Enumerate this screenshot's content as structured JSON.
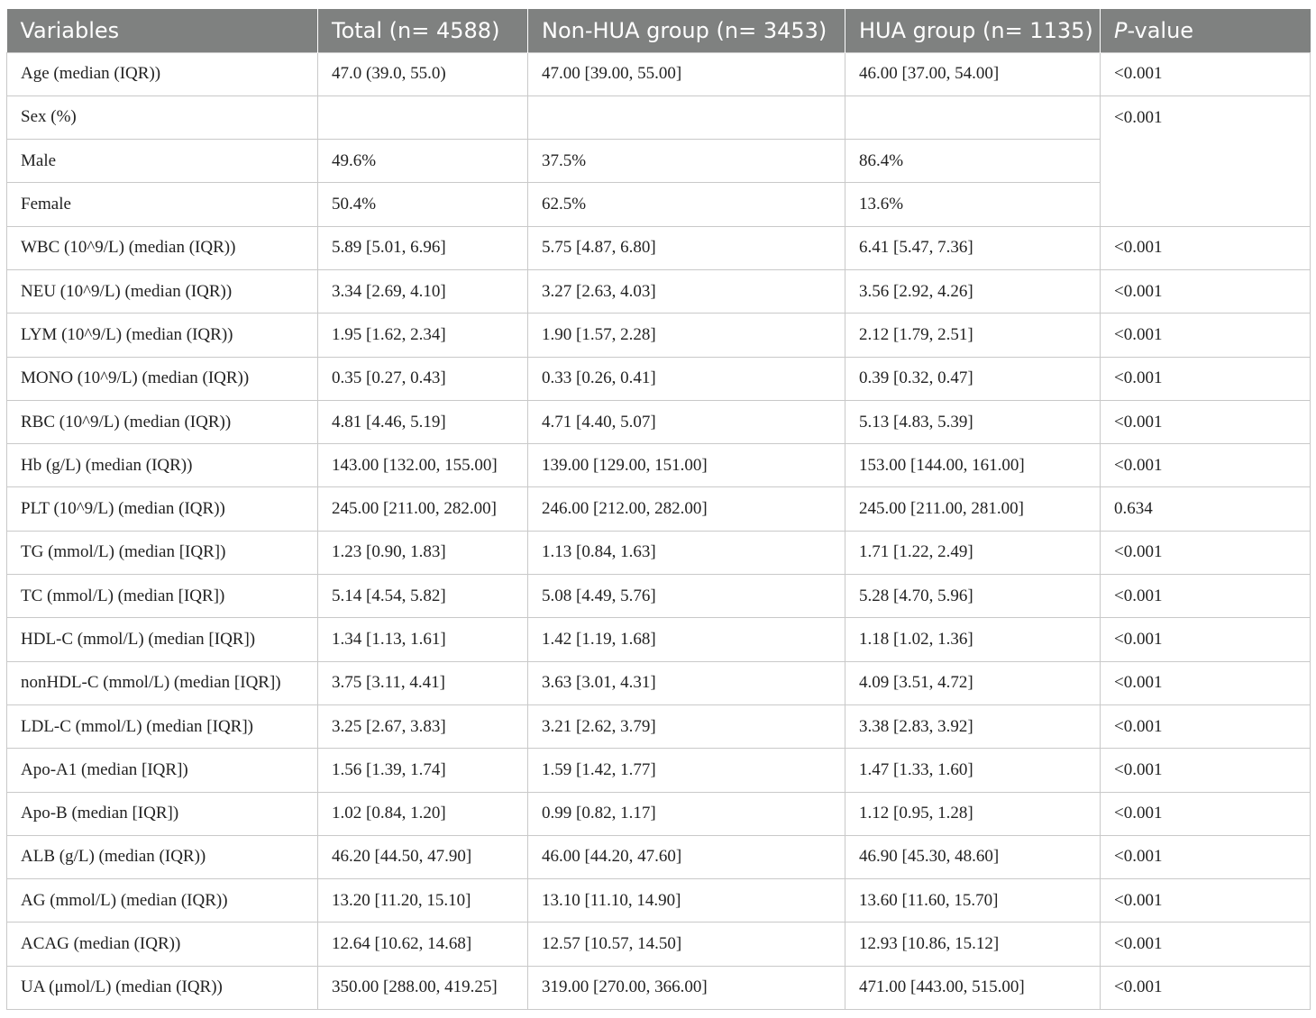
{
  "table": {
    "headers": {
      "variables": "Variables",
      "total": "Total (n= 4588)",
      "non_hua": "Non-HUA group (n= 3453)",
      "hua": "HUA group (n= 1135)",
      "p_italic": "P",
      "p_rest": "-value"
    },
    "rows": [
      [
        "Age (median (IQR))",
        "47.0 (39.0, 55.0)",
        "47.00 [39.00, 55.00]",
        "46.00 [37.00, 54.00]",
        "<0.001"
      ],
      [
        "Sex (%)",
        "",
        "",
        "",
        "<0.001"
      ],
      [
        "Male",
        "49.6%",
        "37.5%",
        "86.4%",
        ""
      ],
      [
        "Female",
        "50.4%",
        "62.5%",
        "13.6%",
        ""
      ],
      [
        "WBC (10^9/L) (median (IQR))",
        "5.89 [5.01, 6.96]",
        "5.75 [4.87, 6.80]",
        "6.41 [5.47, 7.36]",
        "<0.001"
      ],
      [
        "NEU (10^9/L) (median (IQR))",
        "3.34 [2.69, 4.10]",
        "3.27 [2.63, 4.03]",
        "3.56 [2.92, 4.26]",
        "<0.001"
      ],
      [
        "LYM (10^9/L) (median (IQR))",
        "1.95 [1.62, 2.34]",
        "1.90 [1.57, 2.28]",
        "2.12 [1.79, 2.51]",
        "<0.001"
      ],
      [
        "MONO (10^9/L) (median (IQR))",
        "0.35 [0.27, 0.43]",
        "0.33 [0.26, 0.41]",
        "0.39 [0.32, 0.47]",
        "<0.001"
      ],
      [
        "RBC (10^9/L) (median (IQR))",
        "4.81 [4.46, 5.19]",
        "4.71 [4.40, 5.07]",
        "5.13 [4.83, 5.39]",
        "<0.001"
      ],
      [
        "Hb (g/L) (median (IQR))",
        "143.00 [132.00, 155.00]",
        "139.00 [129.00, 151.00]",
        "153.00 [144.00, 161.00]",
        "<0.001"
      ],
      [
        "PLT (10^9/L) (median (IQR))",
        "245.00 [211.00, 282.00]",
        "246.00 [212.00, 282.00]",
        "245.00 [211.00, 281.00]",
        "0.634"
      ],
      [
        "TG (mmol/L) (median [IQR])",
        "1.23 [0.90, 1.83]",
        "1.13 [0.84, 1.63]",
        "1.71 [1.22, 2.49]",
        "<0.001"
      ],
      [
        "TC (mmol/L) (median [IQR])",
        "5.14 [4.54, 5.82]",
        "5.08 [4.49, 5.76]",
        "5.28 [4.70, 5.96]",
        "<0.001"
      ],
      [
        "HDL-C (mmol/L) (median [IQR])",
        "1.34 [1.13, 1.61]",
        "1.42 [1.19, 1.68]",
        "1.18 [1.02, 1.36]",
        "<0.001"
      ],
      [
        "nonHDL-C (mmol/L) (median [IQR])",
        "3.75 [3.11, 4.41]",
        "3.63 [3.01, 4.31]",
        "4.09 [3.51, 4.72]",
        "<0.001"
      ],
      [
        "LDL-C (mmol/L) (median [IQR])",
        "3.25 [2.67, 3.83]",
        "3.21 [2.62, 3.79]",
        "3.38 [2.83, 3.92]",
        "<0.001"
      ],
      [
        "Apo-A1 (median [IQR])",
        "1.56 [1.39, 1.74]",
        "1.59 [1.42, 1.77]",
        "1.47 [1.33, 1.60]",
        "<0.001"
      ],
      [
        "Apo-B (median [IQR])",
        "1.02 [0.84, 1.20]",
        "0.99 [0.82, 1.17]",
        "1.12 [0.95, 1.28]",
        "<0.001"
      ],
      [
        "ALB (g/L) (median (IQR))",
        "46.20 [44.50, 47.90]",
        "46.00 [44.20, 47.60]",
        "46.90 [45.30, 48.60]",
        "<0.001"
      ],
      [
        "AG (mmol/L) (median (IQR))",
        "13.20 [11.20, 15.10]",
        "13.10 [11.10, 14.90]",
        "13.60 [11.60, 15.70]",
        "<0.001"
      ],
      [
        "ACAG (median (IQR))",
        "12.64 [10.62, 14.68]",
        "12.57 [10.57, 14.50]",
        "12.93 [10.86, 15.12]",
        "<0.001"
      ],
      [
        "UA (μmol/L) (median (IQR))",
        "350.00 [288.00, 419.25]",
        "319.00 [270.00, 366.00]",
        "471.00 [443.00, 515.00]",
        "<0.001"
      ]
    ]
  }
}
